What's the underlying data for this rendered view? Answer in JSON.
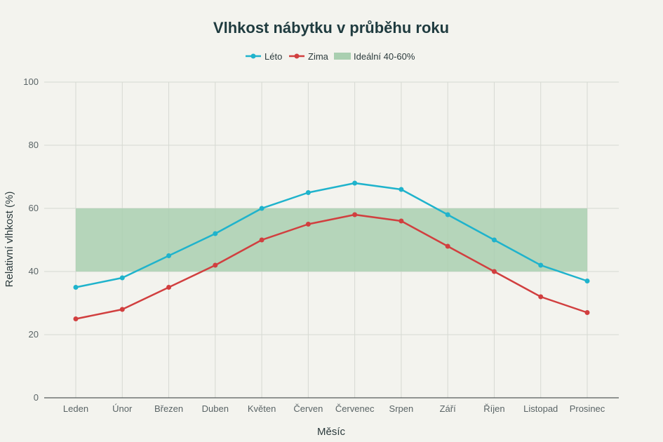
{
  "chart_data": {
    "type": "line",
    "title": "Vlhkost nábytku v průběhu roku",
    "xlabel": "Měsíc",
    "ylabel": "Relativní vlhkost (%)",
    "categories": [
      "Leden",
      "Únor",
      "Březen",
      "Duben",
      "Květen",
      "Červen",
      "Červenec",
      "Srpen",
      "Září",
      "Říjen",
      "Listopad",
      "Prosinec"
    ],
    "ylim": [
      0,
      100
    ],
    "yticks": [
      0,
      20,
      40,
      60,
      80,
      100
    ],
    "grid": true,
    "legend_position": "top-center",
    "series": [
      {
        "name": "Léto",
        "color": "#1fb3cc",
        "values": [
          35,
          38,
          45,
          52,
          60,
          65,
          68,
          66,
          58,
          50,
          42,
          37
        ]
      },
      {
        "name": "Zima",
        "color": "#d13f3f",
        "values": [
          25,
          28,
          35,
          42,
          50,
          55,
          58,
          56,
          48,
          40,
          32,
          27
        ]
      }
    ],
    "band": {
      "name": "Ideální 40-60%",
      "from": 40,
      "to": 60,
      "color": "#a9cfb0"
    }
  }
}
